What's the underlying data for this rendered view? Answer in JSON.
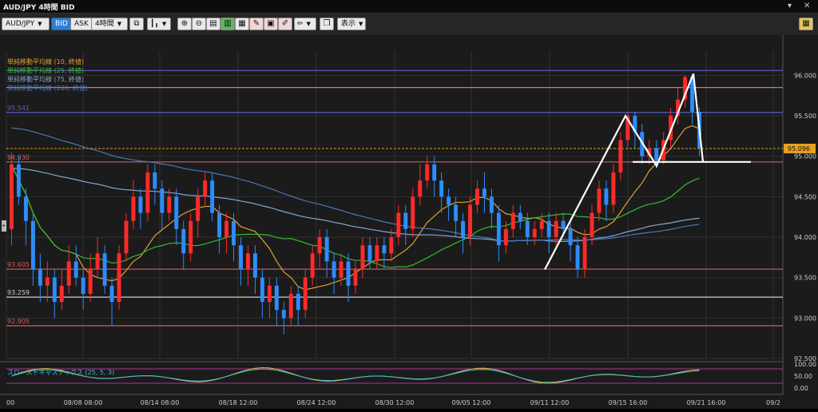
{
  "window": {
    "title": "AUD/JPY 4時間 BID",
    "menu_icon": "chevron-down-icon",
    "close_icon": "close-icon"
  },
  "toolbar": {
    "symbol": "AUD/JPY",
    "bid_label": "BID",
    "ask_label": "ASK",
    "timeframe": "4時間",
    "display_label": "表示",
    "icons": [
      "copy-icon",
      "candlestick-icon",
      "zoom-in-icon",
      "zoom-out-icon",
      "layout-icon",
      "layout-split-icon",
      "layout-wide-icon",
      "draw-icon",
      "screenshot-icon",
      "draw-pen-icon",
      "window-icon",
      "grid-icon"
    ]
  },
  "chart_data": {
    "type": "candlestick",
    "ylim": [
      92.5,
      96.3
    ],
    "y_ticks": [
      "96.000",
      "95.500",
      "95.000",
      "94.500",
      "94.000",
      "93.500",
      "93.000",
      "92.500"
    ],
    "x_ticks": [
      "00",
      "08/08 08:00",
      "08/14 08:00",
      "08/18 12:00",
      "08/24 12:00",
      "08/30 12:00",
      "09/05 12:00",
      "09/11 12:00",
      "09/15 16:00",
      "09/21 16:00",
      "09/2"
    ],
    "current_price": "95.096",
    "current_value": 95.096,
    "indicators": [
      {
        "name": "単純移動平均線 (10, 終値)",
        "color": "#e0a030"
      },
      {
        "name": "単純移動平均線 (25, 終値)",
        "color": "#33bb33"
      },
      {
        "name": "単純移動平均線 (75, 終値)",
        "color": "#7fa8d0"
      },
      {
        "name": "単純移動平均線 (200, 終値)",
        "color": "#4b78b8"
      }
    ],
    "horizontal_lines": [
      {
        "value": 96.06,
        "label": "",
        "color": "#5a60c8"
      },
      {
        "value": 95.85,
        "label": "",
        "color": "#e07070"
      },
      {
        "value": 95.541,
        "label": "95.541",
        "color": "#5a60c8"
      },
      {
        "value": 94.93,
        "label": "94.930",
        "color": "#d06060"
      },
      {
        "value": 93.605,
        "label": "93.605",
        "color": "#d06060"
      },
      {
        "value": 93.259,
        "label": "93.259",
        "color": "#cccccc"
      },
      {
        "value": 92.905,
        "label": "92.905",
        "color": "#d06060"
      }
    ],
    "oscillator": {
      "name": "スローストキャスティクス (25, 5, 3)",
      "ticks": [
        "100.00",
        "50.00",
        "0.00"
      ]
    },
    "candles": [
      [
        94.1,
        94.9,
        95.05,
        93.9
      ],
      [
        94.9,
        94.5,
        95.0,
        94.4
      ],
      [
        94.5,
        94.2,
        94.6,
        93.9
      ],
      [
        94.2,
        93.6,
        94.3,
        93.4
      ],
      [
        93.6,
        93.4,
        93.8,
        93.2
      ],
      [
        93.4,
        93.5,
        93.7,
        93.2
      ],
      [
        93.5,
        93.2,
        93.6,
        93.0
      ],
      [
        93.2,
        93.4,
        93.6,
        93.1
      ],
      [
        93.4,
        93.7,
        93.9,
        93.3
      ],
      [
        93.7,
        93.5,
        93.9,
        93.4
      ],
      [
        93.5,
        93.3,
        93.6,
        93.1
      ],
      [
        93.3,
        93.6,
        93.8,
        93.2
      ],
      [
        93.6,
        93.8,
        94.0,
        93.5
      ],
      [
        93.8,
        93.4,
        93.9,
        93.3
      ],
      [
        93.4,
        93.2,
        93.5,
        92.9
      ],
      [
        93.2,
        93.8,
        93.9,
        93.1
      ],
      [
        93.8,
        94.2,
        94.3,
        93.7
      ],
      [
        94.2,
        94.5,
        94.7,
        94.1
      ],
      [
        94.5,
        94.3,
        94.6,
        94.1
      ],
      [
        94.3,
        94.8,
        94.9,
        94.2
      ],
      [
        94.8,
        94.6,
        94.9,
        94.4
      ],
      [
        94.6,
        94.3,
        94.7,
        94.1
      ],
      [
        94.3,
        94.5,
        94.6,
        94.2
      ],
      [
        94.5,
        94.1,
        94.6,
        93.9
      ],
      [
        94.1,
        93.8,
        94.2,
        93.6
      ],
      [
        93.8,
        94.2,
        94.3,
        93.7
      ],
      [
        94.2,
        94.5,
        94.6,
        94.0
      ],
      [
        94.5,
        94.7,
        94.8,
        94.4
      ],
      [
        94.7,
        94.3,
        94.8,
        94.2
      ],
      [
        94.3,
        94.0,
        94.4,
        93.8
      ],
      [
        94.0,
        94.2,
        94.3,
        93.8
      ],
      [
        94.2,
        93.9,
        94.3,
        93.7
      ],
      [
        93.9,
        93.6,
        94.0,
        93.4
      ],
      [
        93.6,
        93.8,
        93.9,
        93.4
      ],
      [
        93.8,
        93.5,
        93.9,
        93.3
      ],
      [
        93.5,
        93.2,
        93.6,
        93.0
      ],
      [
        93.2,
        93.4,
        93.5,
        93.0
      ],
      [
        93.4,
        93.1,
        93.5,
        92.9
      ],
      [
        93.1,
        93.0,
        93.2,
        92.8
      ],
      [
        93.0,
        93.3,
        93.4,
        92.9
      ],
      [
        93.3,
        93.1,
        93.4,
        92.9
      ],
      [
        93.1,
        93.5,
        93.6,
        93.0
      ],
      [
        93.5,
        93.8,
        93.9,
        93.4
      ],
      [
        93.8,
        94.0,
        94.1,
        93.6
      ],
      [
        94.0,
        93.7,
        94.1,
        93.5
      ],
      [
        93.7,
        93.5,
        93.8,
        93.3
      ],
      [
        93.5,
        93.7,
        93.8,
        93.4
      ],
      [
        93.7,
        93.4,
        93.8,
        93.2
      ],
      [
        93.4,
        93.6,
        93.7,
        93.3
      ],
      [
        93.6,
        93.9,
        94.0,
        93.5
      ],
      [
        93.9,
        93.7,
        94.0,
        93.6
      ],
      [
        93.7,
        93.9,
        94.0,
        93.6
      ],
      [
        93.9,
        93.8,
        94.0,
        93.6
      ],
      [
        93.8,
        94.0,
        94.1,
        93.7
      ],
      [
        94.0,
        94.3,
        94.4,
        93.9
      ],
      [
        94.3,
        94.1,
        94.4,
        93.9
      ],
      [
        94.1,
        94.5,
        94.6,
        94.0
      ],
      [
        94.5,
        94.7,
        94.9,
        94.4
      ],
      [
        94.7,
        94.9,
        95.0,
        94.6
      ],
      [
        94.9,
        94.7,
        95.0,
        94.5
      ],
      [
        94.7,
        94.5,
        94.8,
        94.3
      ],
      [
        94.5,
        94.4,
        94.6,
        94.2
      ],
      [
        94.4,
        94.2,
        94.5,
        94.0
      ],
      [
        94.2,
        94.0,
        94.3,
        93.8
      ],
      [
        94.0,
        94.4,
        94.5,
        93.9
      ],
      [
        94.4,
        94.6,
        94.7,
        94.3
      ],
      [
        94.6,
        94.5,
        94.8,
        94.3
      ],
      [
        94.5,
        94.3,
        94.6,
        94.1
      ],
      [
        94.3,
        93.9,
        94.4,
        93.7
      ],
      [
        93.9,
        94.1,
        94.2,
        93.8
      ],
      [
        94.1,
        94.3,
        94.4,
        94.0
      ],
      [
        94.3,
        94.2,
        94.4,
        94.1
      ],
      [
        94.2,
        94.0,
        94.3,
        93.9
      ],
      [
        94.0,
        94.1,
        94.2,
        93.9
      ],
      [
        94.1,
        94.2,
        94.3,
        94.0
      ],
      [
        94.2,
        94.0,
        94.3,
        93.8
      ],
      [
        94.0,
        94.2,
        94.3,
        93.9
      ],
      [
        94.2,
        94.1,
        94.3,
        94.0
      ],
      [
        94.1,
        93.9,
        94.2,
        93.7
      ],
      [
        93.9,
        93.6,
        94.0,
        93.5
      ],
      [
        93.6,
        94.0,
        94.1,
        93.5
      ],
      [
        94.0,
        94.3,
        94.4,
        93.9
      ],
      [
        94.3,
        94.6,
        94.7,
        94.2
      ],
      [
        94.6,
        94.4,
        94.7,
        94.2
      ],
      [
        94.4,
        94.8,
        94.9,
        94.3
      ],
      [
        94.8,
        95.2,
        95.3,
        94.7
      ],
      [
        95.2,
        95.5,
        95.55,
        95.1
      ],
      [
        95.5,
        95.3,
        95.55,
        95.1
      ],
      [
        95.3,
        95.0,
        95.4,
        94.9
      ],
      [
        95.0,
        95.1,
        95.2,
        94.9
      ],
      [
        95.1,
        94.95,
        95.2,
        94.85
      ],
      [
        94.95,
        95.2,
        95.3,
        94.9
      ],
      [
        95.2,
        95.5,
        95.6,
        95.1
      ],
      [
        95.5,
        95.7,
        95.85,
        95.4
      ],
      [
        95.7,
        95.98,
        96.0,
        95.6
      ],
      [
        95.98,
        95.55,
        96.0,
        95.4
      ],
      [
        95.55,
        95.1,
        95.6,
        95.0
      ]
    ]
  }
}
